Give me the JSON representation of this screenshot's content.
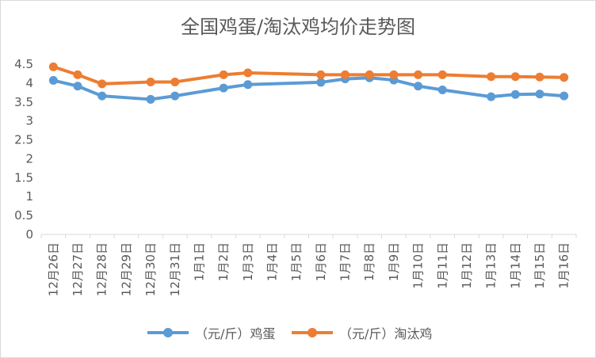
{
  "chart_data": {
    "type": "line",
    "title": "全国鸡蛋/淘汰鸡均价走势图",
    "xlabel": "",
    "ylabel": "",
    "ylim": [
      0,
      4.5
    ],
    "yticks": [
      "0",
      "0.5",
      "1",
      "1.5",
      "2",
      "2.5",
      "3",
      "3.5",
      "4",
      "4.5"
    ],
    "categories": [
      "12月26日",
      "12月27日",
      "12月28日",
      "12月29日",
      "12月30日",
      "12月31日",
      "1月1日",
      "1月2日",
      "1月3日",
      "1月4日",
      "1月5日",
      "1月6日",
      "1月7日",
      "1月8日",
      "1月9日",
      "1月10日",
      "1月11日",
      "1月12日",
      "1月13日",
      "1月14日",
      "1月15日",
      "1月16日"
    ],
    "grid": false,
    "legend_position": "bottom",
    "series": [
      {
        "name": "（元/斤）鸡蛋",
        "color": "#5b9bd5",
        "values": [
          4.07,
          3.92,
          3.66,
          null,
          3.57,
          3.66,
          null,
          3.87,
          3.96,
          null,
          null,
          4.02,
          4.11,
          4.14,
          4.08,
          3.92,
          3.82,
          null,
          3.64,
          3.7,
          3.71,
          3.66
        ]
      },
      {
        "name": "（元/斤）淘汰鸡",
        "color": "#ed7d31",
        "values": [
          4.43,
          4.22,
          3.98,
          null,
          4.03,
          4.03,
          null,
          4.22,
          4.27,
          null,
          null,
          4.22,
          4.22,
          4.22,
          4.22,
          4.22,
          4.22,
          null,
          4.17,
          4.17,
          4.16,
          4.15
        ]
      }
    ]
  }
}
